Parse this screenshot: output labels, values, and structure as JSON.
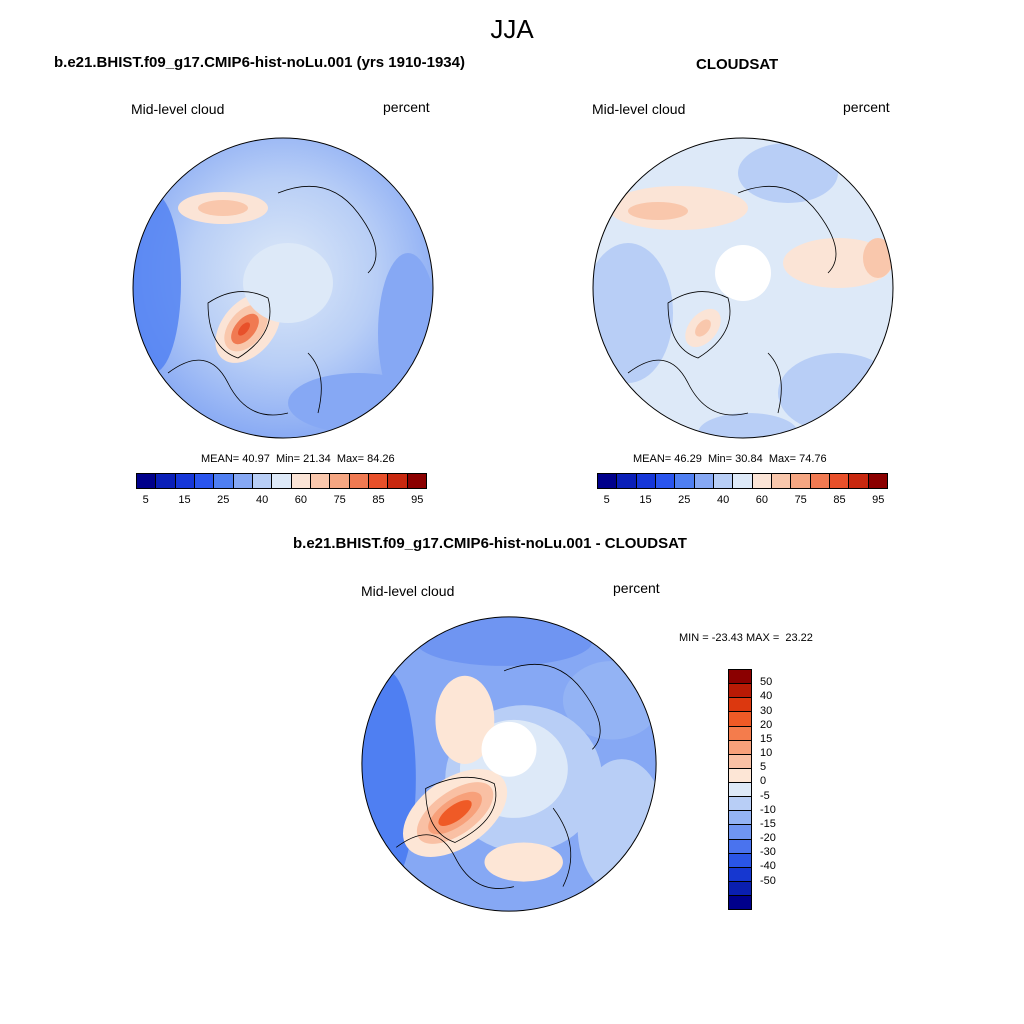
{
  "title": "JJA",
  "panels": [
    {
      "title": "b.e21.BHIST.f09_g17.CMIP6-hist-noLu.001 (yrs 1910-1934)",
      "variable": "Mid-level cloud",
      "units": "percent",
      "mean_label": "MEAN=",
      "mean": "40.97",
      "min_label": "Min=",
      "min": "21.34",
      "max_label": "Max=",
      "max": "84.26"
    },
    {
      "title": "CLOUDSAT",
      "variable": "Mid-level cloud",
      "units": "percent",
      "mean_label": "MEAN=",
      "mean": "46.29",
      "min_label": "Min=",
      "min": "30.84",
      "max_label": "Max=",
      "max": "74.76"
    },
    {
      "title": "b.e21.BHIST.f09_g17.CMIP6-hist-noLu.001 - CLOUDSAT",
      "variable": "Mid-level cloud",
      "units": "percent",
      "minmax_text": "MIN = -23.43 MAX =  23.22"
    }
  ],
  "colorbar_main": {
    "colors": [
      "#00008b",
      "#0a1fb8",
      "#1637d8",
      "#2a55ee",
      "#4f7ff2",
      "#86a8f4",
      "#b8cef6",
      "#dde9f8",
      "#fbe4d6",
      "#f9c7ac",
      "#f5a682",
      "#f07a52",
      "#e8502a",
      "#c8280f",
      "#8b0000"
    ],
    "tick_labels": [
      "5",
      "15",
      "25",
      "40",
      "60",
      "75",
      "85",
      "95"
    ]
  },
  "colorbar_diff": {
    "colors": [
      "#8b0000",
      "#b81a05",
      "#dc380f",
      "#ef5a26",
      "#f47c4c",
      "#f7a07a",
      "#f9c0a4",
      "#fde6d6",
      "#dde9f8",
      "#b8cef6",
      "#93b3f4",
      "#6f95f2",
      "#4a73ee",
      "#2a55e6",
      "#1637d0",
      "#0a1fb0",
      "#00008b"
    ],
    "tick_labels": [
      "50",
      "40",
      "30",
      "20",
      "15",
      "10",
      "5",
      "0",
      "-5",
      "-10",
      "-15",
      "-20",
      "-30",
      "-40",
      "-50"
    ]
  }
}
